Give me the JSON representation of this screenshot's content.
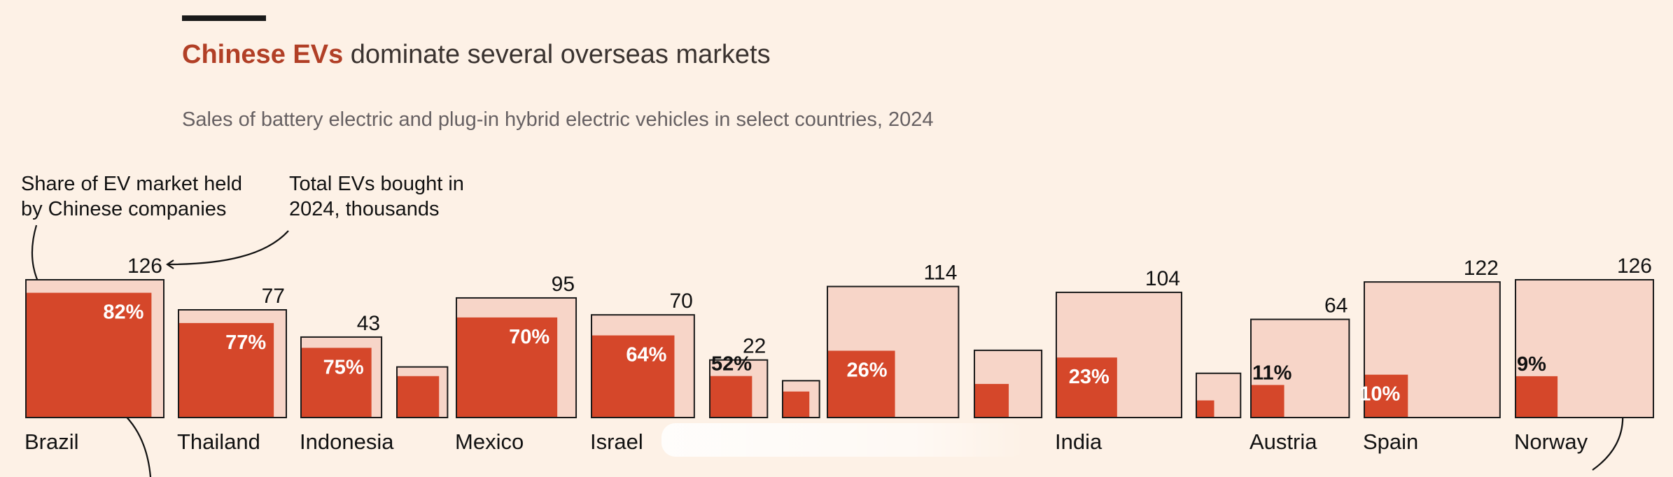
{
  "title": {
    "accent": "Chinese EVs",
    "rest": " dominate several overseas markets"
  },
  "subtitle": "Sales of battery electric and plug-in hybrid electric vehicles in select countries, 2024",
  "annotations": {
    "share_label": [
      "Share of EV market held",
      "by Chinese companies"
    ],
    "total_label": [
      "Total EVs bought in",
      "2024, thousands"
    ]
  },
  "colors": {
    "background": "#fdf1e6",
    "total_fill": "#f7d5c8",
    "share_fill": "#d5472a",
    "outline": "#1a1a1a",
    "title_accent": "#b13f26"
  },
  "chart_data": {
    "type": "nested-square",
    "title": "Chinese EVs dominate several overseas markets",
    "subtitle": "Sales of battery electric and plug-in hybrid electric vehicles in select countries, 2024",
    "encoding": {
      "outer_square_area": "Total EVs bought in 2024, thousands",
      "inner_square_area": "Share of EV market held by Chinese companies"
    },
    "countries": [
      {
        "name": "Brazil",
        "total": 126,
        "share": 82
      },
      {
        "name": "Thailand",
        "total": 77,
        "share": 77
      },
      {
        "name": "Indonesia",
        "total": 43,
        "share": 75
      },
      {
        "name": "",
        "total": 17,
        "share": 67,
        "total_label": null,
        "share_label": null
      },
      {
        "name": "Mexico",
        "total": 95,
        "share": 70
      },
      {
        "name": "Israel",
        "total": 70,
        "share": 64
      },
      {
        "name": "",
        "total": 22,
        "share": 52
      },
      {
        "name": "",
        "total": 9,
        "share": 50,
        "total_label": null,
        "share_label": null
      },
      {
        "name": "",
        "total": 114,
        "share": 26
      },
      {
        "name": "",
        "total": 30,
        "share": 25,
        "total_label": null,
        "share_label": null
      },
      {
        "name": "India",
        "total": 104,
        "share": 23
      },
      {
        "name": "",
        "total": 13,
        "share": 15,
        "total_label": null,
        "share_label": null
      },
      {
        "name": "Austria",
        "total": 64,
        "share": 11
      },
      {
        "name": "Spain",
        "total": 122,
        "share": 10
      },
      {
        "name": "Norway",
        "total": 126,
        "share": 9
      }
    ]
  }
}
